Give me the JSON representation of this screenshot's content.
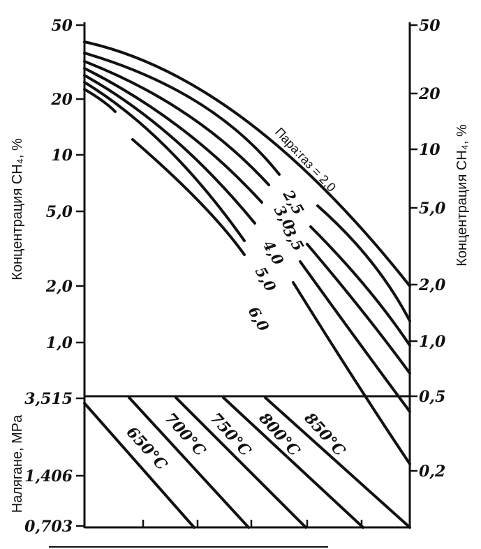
{
  "chart_data": {
    "type": "line",
    "left_axis": {
      "label": "Концентрация CH₄, %",
      "ticks": [
        "50",
        "20",
        "10",
        "5,0",
        "2,0",
        "1,0"
      ]
    },
    "right_axis": {
      "label": "Концентрация CH₄, %",
      "ticks": [
        "50",
        "20",
        "10",
        "5,0",
        "2,0",
        "1,0",
        "0,5",
        "0,2"
      ]
    },
    "pressure_axis": {
      "label": "Налягане, MPa",
      "ticks": [
        "3,515",
        "1,406",
        "0,703"
      ]
    },
    "steam_gas_title": "Пара:газ = 2,0",
    "curves": [
      {
        "label": "2,0"
      },
      {
        "label": "2,5"
      },
      {
        "label": "3,0"
      },
      {
        "label": "3,5"
      },
      {
        "label": "4,0"
      },
      {
        "label": "5,0"
      },
      {
        "label": "6,0"
      }
    ],
    "temperatures": [
      {
        "label": "650°C"
      },
      {
        "label": "700°C"
      },
      {
        "label": "750°C"
      },
      {
        "label": "800°C"
      },
      {
        "label": "850°C"
      }
    ]
  }
}
